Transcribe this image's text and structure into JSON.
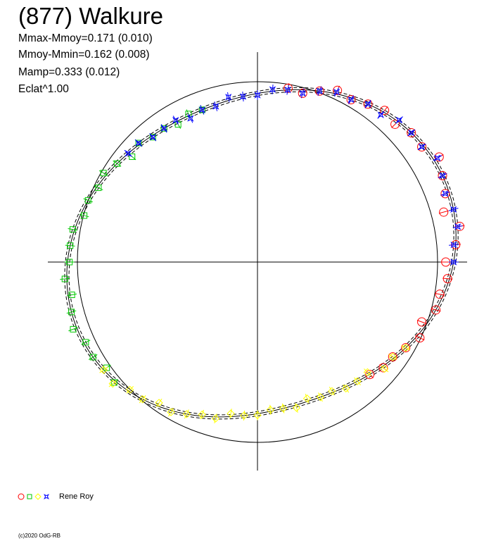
{
  "title": "(877) Walkure",
  "stats": {
    "line1": "Mmax-Mmoy=0.171 (0.010)",
    "line2": "Mmoy-Mmin=0.162 (0.008)",
    "line3": "Mamp=0.333 (0.012)",
    "line4": "Eclat^1.00"
  },
  "legend": {
    "label": "Rene Roy",
    "symbols": [
      "circle",
      "square",
      "diamond",
      "star"
    ]
  },
  "copyright": "(c)2020 OdG-RB",
  "chart_data": {
    "type": "scatter",
    "projection": "polar",
    "angle_range_deg": [
      0,
      360
    ],
    "reference_circle_radius": 1.0,
    "axes": "crosshair",
    "grid": false,
    "colors": {
      "series_red": "#ff0000",
      "series_green": "#00c800",
      "series_yellow": "#ffff00",
      "series_blue": "#0000ff",
      "fit_curve": "#000000"
    },
    "fit": {
      "mean_radius": 0.98,
      "harmonic2_amp": 0.12,
      "harmonic2_phase_deg": 20,
      "harmonic1_amp": 0.05,
      "harmonic1_phase_deg": 70,
      "band": 0.012
    },
    "series": [
      {
        "marker": "circle",
        "color": "#ff0000",
        "angle_deg": [
          -45,
          -40,
          -35,
          -30,
          -25,
          -20,
          -15,
          -10,
          -5,
          0,
          5,
          10,
          15,
          20,
          25,
          30,
          35,
          40,
          45,
          50,
          55,
          60,
          65,
          70,
          75,
          80
        ],
        "radius": [
          1.0,
          1.01,
          0.99,
          1.0,
          1.02,
          0.97,
          1.0,
          0.98,
          0.99,
          0.96,
          1.0,
          1.02,
          0.95,
          0.98,
          1.0,
          1.03,
          0.99,
          1.0,
          0.98,
          1.01,
          1.0,
          0.99,
          1.02,
          1.0,
          0.98,
          1.01
        ]
      },
      {
        "marker": "square",
        "color": "#00c800",
        "angle_deg": [
          110,
          115,
          120,
          125,
          130,
          135,
          140,
          145,
          150,
          155,
          160,
          165,
          170,
          175,
          180,
          185,
          190,
          195,
          200,
          205,
          210,
          215,
          220
        ],
        "radius": [
          1.0,
          1.01,
          0.98,
          1.0,
          0.99,
          1.01,
          0.97,
          1.0,
          1.02,
          0.99,
          1.0,
          0.98,
          1.01,
          1.0,
          0.99,
          1.01,
          0.98,
          1.0,
          1.02,
          0.99,
          1.0,
          0.98,
          1.01
        ]
      },
      {
        "marker": "diamond",
        "color": "#ffff00",
        "angle_deg": [
          215,
          220,
          225,
          230,
          235,
          240,
          245,
          250,
          255,
          260,
          265,
          270,
          275,
          280,
          285,
          290,
          295,
          300,
          305,
          310,
          315,
          320,
          325,
          330
        ],
        "radius": [
          1.0,
          1.02,
          0.99,
          1.0,
          0.98,
          1.01,
          1.0,
          0.99,
          1.01,
          0.98,
          1.0,
          1.01,
          0.99,
          1.0,
          1.02,
          0.98,
          1.0,
          0.99,
          1.01,
          1.0,
          0.98,
          1.02,
          0.99,
          1.0
        ]
      },
      {
        "marker": "star",
        "color": "#0000ff",
        "angle_deg": [
          0,
          5,
          10,
          15,
          20,
          25,
          30,
          35,
          40,
          45,
          50,
          55,
          60,
          65,
          70,
          75,
          80,
          85,
          90,
          95,
          100,
          105,
          110,
          115,
          120,
          125,
          130,
          135,
          140
        ],
        "radius": [
          1.0,
          0.99,
          1.01,
          1.0,
          0.98,
          1.0,
          1.02,
          0.99,
          1.0,
          1.01,
          0.98,
          1.0,
          0.99,
          1.01,
          1.0,
          0.98,
          1.0,
          1.01,
          0.99,
          1.0,
          1.02,
          0.99,
          1.0,
          0.98,
          1.01,
          1.0,
          0.99,
          1.01,
          1.0
        ]
      }
    ]
  }
}
